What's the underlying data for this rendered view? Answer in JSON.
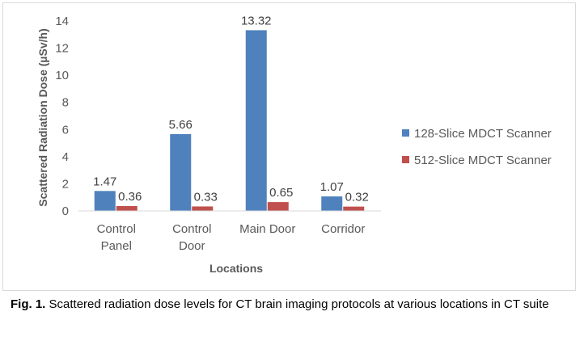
{
  "chart_data": {
    "type": "bar",
    "categories": [
      [
        "Control",
        "Panel"
      ],
      [
        "Control",
        "Door"
      ],
      [
        "Main Door"
      ],
      [
        "Corridor"
      ]
    ],
    "series": [
      {
        "name": "128-Slice MDCT Scanner",
        "values": [
          1.47,
          5.66,
          13.32,
          1.07
        ],
        "color": "#4f81bd",
        "labels": [
          "1.47",
          "5.66",
          "13.32",
          "1.07"
        ]
      },
      {
        "name": "512-Slice MDCT Scanner",
        "values": [
          0.36,
          0.33,
          0.65,
          0.32
        ],
        "color": "#c0504d",
        "labels": [
          "0.36",
          "0.33",
          "0.65",
          "0.32"
        ]
      }
    ],
    "xlabel": "Locations",
    "ylabel": "Scattered Radiation Dose (µSv/h)",
    "ylim": [
      0,
      14
    ],
    "yticks": [
      0,
      2,
      4,
      6,
      8,
      10,
      12,
      14
    ],
    "grid": false,
    "legend": "right"
  },
  "caption": {
    "label": "Fig. 1.",
    "text": " Scattered radiation dose levels for CT brain imaging protocols at various locations in CT suite"
  }
}
